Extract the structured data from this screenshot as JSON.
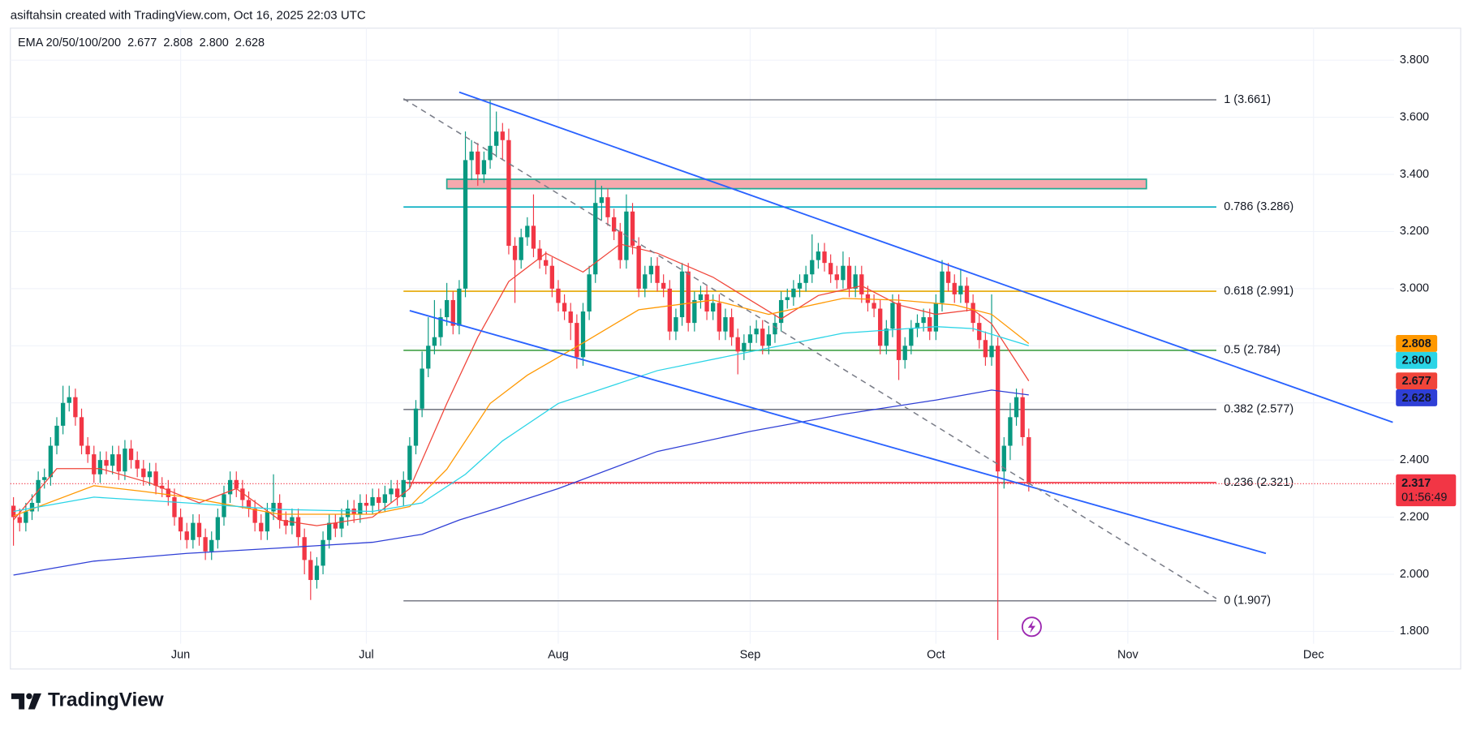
{
  "header": "asiftahsin created with TradingView.com, Oct 16, 2025 22:03 UTC",
  "brand": "TradingView",
  "chart_data": {
    "type": "candlestick",
    "indicator": "EMA 20/50/100/200",
    "xlim": [
      -0.5,
      223
    ],
    "ylim": [
      1.757,
      3.912
    ],
    "xticks": [
      {
        "value": 27,
        "label": "Jun"
      },
      {
        "value": 57,
        "label": "Jul"
      },
      {
        "value": 88,
        "label": "Aug"
      },
      {
        "value": 119,
        "label": "Sep"
      },
      {
        "value": 149,
        "label": "Oct"
      },
      {
        "value": 180,
        "label": "Nov"
      },
      {
        "value": 210,
        "label": "Dec"
      }
    ],
    "yticks": [
      {
        "value": 1.8,
        "label": "1.800"
      },
      {
        "value": 2.0,
        "label": "2.000"
      },
      {
        "value": 2.2,
        "label": "2.200"
      },
      {
        "value": 2.4,
        "label": "2.400"
      },
      {
        "value": 2.6,
        "label": "2.600"
      },
      {
        "value": 2.8,
        "label": "2.800"
      },
      {
        "value": 3.0,
        "label": "3.000"
      },
      {
        "value": 3.2,
        "label": "3.200"
      },
      {
        "value": 3.4,
        "label": "3.400"
      },
      {
        "value": 3.6,
        "label": "3.600"
      },
      {
        "value": 3.8,
        "label": "3.800"
      }
    ],
    "grid": true,
    "up_color": "#089981",
    "down_color": "#f23645",
    "open": [
      2.24,
      2.2,
      2.18,
      2.22,
      2.25,
      2.33,
      2.34,
      2.45,
      2.52,
      2.6,
      2.62,
      2.55,
      2.45,
      2.42,
      2.35,
      2.4,
      2.38,
      2.42,
      2.36,
      2.44,
      2.4,
      2.37,
      2.34,
      2.36,
      2.31,
      2.3,
      2.27,
      2.2,
      2.15,
      2.12,
      2.18,
      2.13,
      2.08,
      2.12,
      2.2,
      2.28,
      2.33,
      2.3,
      2.26,
      2.23,
      2.18,
      2.15,
      2.22,
      2.25,
      2.19,
      2.17,
      2.2,
      2.13,
      2.05,
      1.98,
      2.03,
      2.12,
      2.18,
      2.16,
      2.2,
      2.23,
      2.21,
      2.25,
      2.24,
      2.27,
      2.25,
      2.28,
      2.3,
      2.27,
      2.33,
      2.45,
      2.58,
      2.72,
      2.8,
      2.83,
      2.9,
      2.96,
      2.87,
      3.0,
      3.45,
      3.48,
      3.4,
      3.45,
      3.5,
      3.55,
      3.52,
      3.15,
      3.1,
      3.18,
      3.22,
      3.14,
      3.1,
      3.08,
      3.0,
      2.95,
      2.92,
      2.88,
      2.76,
      2.92,
      3.05,
      3.3,
      3.32,
      3.25,
      3.2,
      3.1,
      3.27,
      3.15,
      3.0,
      3.05,
      3.08,
      3.02,
      3.0,
      2.85,
      2.9,
      3.06,
      2.88,
      2.96,
      2.98,
      2.92,
      2.95,
      2.85,
      2.9,
      2.83,
      2.78,
      2.81,
      2.84,
      2.86,
      2.8,
      2.84,
      2.88,
      2.96,
      2.97,
      3.0,
      3.02,
      3.05,
      3.1,
      3.13,
      3.09,
      3.05,
      3.03,
      3.08,
      3.0,
      3.05,
      2.98,
      2.95,
      2.93,
      2.8,
      2.86,
      2.95,
      2.75,
      2.8,
      2.86,
      2.88,
      2.9,
      2.85,
      2.95,
      3.06,
      3.02,
      2.98,
      3.01,
      2.95,
      2.88,
      2.82,
      2.76,
      2.8,
      2.36,
      2.45,
      2.55,
      2.62,
      2.48
    ],
    "high": [
      2.27,
      2.23,
      2.25,
      2.28,
      2.36,
      2.37,
      2.48,
      2.55,
      2.66,
      2.66,
      2.65,
      2.58,
      2.48,
      2.45,
      2.43,
      2.43,
      2.45,
      2.45,
      2.47,
      2.47,
      2.43,
      2.4,
      2.39,
      2.39,
      2.34,
      2.33,
      2.3,
      2.23,
      2.18,
      2.21,
      2.21,
      2.16,
      2.15,
      2.23,
      2.31,
      2.36,
      2.36,
      2.33,
      2.29,
      2.26,
      2.21,
      2.25,
      2.35,
      2.28,
      2.22,
      2.23,
      2.23,
      2.16,
      2.08,
      2.06,
      2.15,
      2.21,
      2.21,
      2.23,
      2.26,
      2.26,
      2.28,
      2.28,
      2.3,
      2.3,
      2.31,
      2.33,
      2.33,
      2.36,
      2.48,
      2.61,
      2.78,
      2.9,
      2.96,
      2.93,
      3.02,
      2.99,
      3.03,
      3.55,
      3.52,
      3.51,
      3.48,
      3.66,
      3.62,
      3.58,
      3.56,
      3.18,
      3.21,
      3.25,
      3.33,
      3.17,
      3.13,
      3.11,
      3.03,
      2.98,
      2.95,
      2.91,
      2.95,
      3.08,
      3.38,
      3.36,
      3.35,
      3.28,
      3.23,
      3.33,
      3.3,
      3.18,
      3.08,
      3.11,
      3.11,
      3.05,
      3.03,
      2.93,
      3.09,
      3.09,
      2.99,
      3.01,
      3.01,
      2.98,
      2.98,
      2.93,
      2.93,
      2.86,
      2.84,
      2.87,
      2.89,
      2.89,
      2.87,
      2.91,
      2.99,
      3.0,
      3.03,
      3.05,
      3.08,
      3.19,
      3.16,
      3.16,
      3.12,
      3.08,
      3.13,
      3.11,
      3.08,
      3.08,
      3.01,
      2.98,
      2.96,
      2.89,
      2.98,
      2.98,
      2.83,
      2.89,
      2.91,
      2.93,
      2.93,
      2.98,
      3.1,
      3.09,
      3.05,
      3.07,
      3.04,
      2.98,
      2.91,
      2.85,
      2.98,
      2.83,
      2.48,
      2.6,
      2.65,
      2.65,
      2.51
    ],
    "low": [
      2.1,
      2.15,
      2.15,
      2.19,
      2.22,
      2.3,
      2.31,
      2.42,
      2.49,
      2.57,
      2.52,
      2.42,
      2.39,
      2.32,
      2.32,
      2.35,
      2.35,
      2.33,
      2.33,
      2.37,
      2.34,
      2.31,
      2.31,
      2.28,
      2.27,
      2.24,
      2.17,
      2.12,
      2.09,
      2.09,
      2.1,
      2.05,
      2.05,
      2.09,
      2.17,
      2.25,
      2.27,
      2.23,
      2.2,
      2.15,
      2.12,
      2.12,
      2.19,
      2.16,
      2.14,
      2.14,
      2.1,
      2.0,
      1.91,
      1.95,
      2.0,
      2.09,
      2.13,
      2.13,
      2.17,
      2.18,
      2.18,
      2.21,
      2.21,
      2.22,
      2.22,
      2.25,
      2.24,
      2.24,
      2.3,
      2.42,
      2.55,
      2.69,
      2.77,
      2.8,
      2.87,
      2.84,
      2.84,
      2.97,
      3.38,
      3.36,
      3.37,
      3.42,
      3.46,
      3.45,
      3.12,
      2.95,
      3.07,
      3.15,
      3.11,
      3.07,
      3.05,
      2.97,
      2.92,
      2.89,
      2.82,
      2.72,
      2.73,
      2.89,
      3.02,
      3.24,
      3.22,
      3.17,
      3.07,
      3.07,
      3.12,
      2.97,
      2.97,
      3.02,
      2.99,
      2.97,
      2.82,
      2.82,
      2.87,
      2.85,
      2.85,
      2.93,
      2.89,
      2.89,
      2.82,
      2.82,
      2.8,
      2.7,
      2.75,
      2.78,
      2.81,
      2.77,
      2.77,
      2.81,
      2.85,
      2.93,
      2.94,
      2.97,
      2.99,
      3.02,
      3.07,
      3.06,
      3.02,
      3.0,
      3.0,
      2.97,
      2.97,
      2.95,
      2.92,
      2.9,
      2.77,
      2.77,
      2.83,
      2.68,
      2.72,
      2.77,
      2.83,
      2.85,
      2.82,
      2.82,
      2.92,
      2.99,
      2.95,
      2.95,
      2.92,
      2.85,
      2.79,
      2.73,
      2.73,
      1.77,
      2.3,
      2.4,
      2.52,
      2.45,
      2.29
    ],
    "close": [
      2.2,
      2.18,
      2.22,
      2.25,
      2.33,
      2.34,
      2.45,
      2.52,
      2.6,
      2.62,
      2.55,
      2.45,
      2.42,
      2.35,
      2.4,
      2.38,
      2.42,
      2.36,
      2.44,
      2.4,
      2.37,
      2.34,
      2.36,
      2.31,
      2.3,
      2.27,
      2.2,
      2.15,
      2.12,
      2.18,
      2.13,
      2.08,
      2.12,
      2.2,
      2.28,
      2.33,
      2.3,
      2.26,
      2.23,
      2.18,
      2.15,
      2.22,
      2.25,
      2.19,
      2.17,
      2.2,
      2.13,
      2.05,
      1.98,
      2.03,
      2.12,
      2.18,
      2.16,
      2.2,
      2.23,
      2.21,
      2.25,
      2.24,
      2.27,
      2.25,
      2.28,
      2.3,
      2.27,
      2.33,
      2.45,
      2.58,
      2.72,
      2.8,
      2.83,
      2.9,
      2.96,
      2.87,
      3.0,
      3.45,
      3.48,
      3.4,
      3.45,
      3.5,
      3.55,
      3.52,
      3.15,
      3.1,
      3.18,
      3.22,
      3.14,
      3.1,
      3.08,
      3.0,
      2.95,
      2.92,
      2.88,
      2.76,
      2.92,
      3.05,
      3.3,
      3.32,
      3.25,
      3.2,
      3.1,
      3.27,
      3.15,
      3.0,
      3.05,
      3.08,
      3.02,
      3.0,
      2.85,
      2.9,
      3.06,
      2.88,
      2.96,
      2.98,
      2.92,
      2.95,
      2.85,
      2.9,
      2.83,
      2.78,
      2.81,
      2.84,
      2.86,
      2.8,
      2.84,
      2.88,
      2.96,
      2.97,
      3.0,
      3.02,
      3.05,
      3.1,
      3.13,
      3.09,
      3.05,
      3.03,
      3.08,
      3.0,
      3.05,
      2.98,
      2.95,
      2.93,
      2.8,
      2.86,
      2.95,
      2.75,
      2.8,
      2.86,
      2.88,
      2.9,
      2.85,
      2.95,
      3.06,
      3.02,
      2.98,
      3.01,
      2.95,
      2.88,
      2.82,
      2.76,
      2.8,
      2.36,
      2.45,
      2.55,
      2.62,
      2.48,
      2.317
    ],
    "countdown": "01:56:49",
    "series": [
      {
        "color": "#f0453a",
        "last": {
          "value": 2.677,
          "label": "2.677"
        },
        "x": [
          0,
          7,
          14,
          22,
          30,
          36,
          43,
          49,
          58,
          64,
          70,
          75,
          80,
          86,
          92,
          98,
          104,
          113,
          119,
          124,
          130,
          137,
          143,
          149,
          155,
          158,
          164
        ],
        "values": [
          2.19,
          2.37,
          2.37,
          2.32,
          2.25,
          2.3,
          2.19,
          2.17,
          2.2,
          2.3,
          2.598,
          2.83,
          3.025,
          3.124,
          3.058,
          3.156,
          3.124,
          3.04,
          2.96,
          2.894,
          2.976,
          3.01,
          2.943,
          2.91,
          2.926,
          2.877,
          2.677
        ]
      },
      {
        "color": "#ff9800",
        "last": {
          "value": 2.808,
          "label": "2.808"
        },
        "x": [
          0,
          13,
          21,
          28,
          43,
          58,
          64,
          70,
          77,
          83,
          92,
          101,
          113,
          122,
          134,
          143,
          152,
          158,
          164
        ],
        "values": [
          2.204,
          2.31,
          2.29,
          2.27,
          2.21,
          2.21,
          2.237,
          2.368,
          2.598,
          2.697,
          2.81,
          2.926,
          2.96,
          2.91,
          2.966,
          2.96,
          2.943,
          2.91,
          2.808
        ]
      },
      {
        "color": "#2ad4e6",
        "last": {
          "value": 2.8,
          "label": "2.800"
        },
        "x": [
          0,
          13,
          28,
          43,
          58,
          66,
          73,
          79,
          88,
          104,
          119,
          134,
          149,
          155,
          164
        ],
        "values": [
          2.22,
          2.27,
          2.25,
          2.227,
          2.22,
          2.25,
          2.35,
          2.467,
          2.598,
          2.713,
          2.779,
          2.844,
          2.867,
          2.86,
          2.8
        ]
      },
      {
        "color": "#2f3fd6",
        "last": {
          "value": 2.628,
          "label": "2.628"
        },
        "x": [
          0,
          13,
          28,
          43,
          58,
          66,
          72,
          78,
          88,
          104,
          119,
          134,
          149,
          158,
          164
        ],
        "values": [
          1.997,
          2.046,
          2.073,
          2.092,
          2.112,
          2.14,
          2.19,
          2.23,
          2.3,
          2.43,
          2.5,
          2.56,
          2.61,
          2.645,
          2.628
        ]
      }
    ],
    "fib_x": [
      63,
      194.3
    ],
    "levels": [
      {
        "label": "1 (3.661)",
        "value": 3.661,
        "color": "#787b86"
      },
      {
        "label": "0.786 (3.286)",
        "value": 3.286,
        "color": "#00acc1"
      },
      {
        "label": "0.618 (2.991)",
        "value": 2.991,
        "color": "#e6a700"
      },
      {
        "label": "0.5 (2.784)",
        "value": 2.784,
        "color": "#43a047"
      },
      {
        "label": "0.382 (2.577)",
        "value": 2.577,
        "color": "#787b86"
      },
      {
        "label": "0.236 (2.321)",
        "value": 2.321,
        "color": "#f23645"
      },
      {
        "label": "0 (1.907)",
        "value": 1.907,
        "color": "#787b86"
      }
    ],
    "trendlines": [
      {
        "x": [
          72,
          222.8
        ],
        "y": [
          3.688,
          2.532
        ],
        "color": "#2962ff",
        "dashed": false
      },
      {
        "x": [
          64,
          202.3
        ],
        "y": [
          2.923,
          2.073
        ],
        "color": "#2962ff",
        "dashed": false
      },
      {
        "x": [
          63,
          194.3
        ],
        "y": [
          3.665,
          1.915
        ],
        "color": "#787b86",
        "dashed": true
      }
    ],
    "zone": {
      "x": [
        70,
        183
      ],
      "y": [
        3.35,
        3.383
      ],
      "fill": "#f5a9ae",
      "border": "#22ab94"
    }
  }
}
